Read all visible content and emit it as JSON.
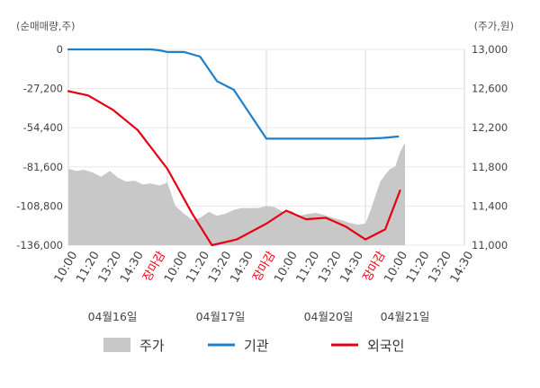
{
  "chart_data": {
    "type": "line",
    "left_axis": {
      "unit_label": "(순매매량,주)",
      "ticks": [
        "0",
        "-27,200",
        "-54,400",
        "-81,600",
        "-108,800",
        "-136,000"
      ],
      "range": [
        -136000,
        0
      ]
    },
    "right_axis": {
      "unit_label": "(주가,원)",
      "ticks": [
        "13,000",
        "12,600",
        "12,200",
        "11,800",
        "11,400",
        "11,000"
      ],
      "range": [
        11000,
        13000
      ]
    },
    "x_ticks": [
      "10:00",
      "11:20",
      "13:20",
      "14:30",
      "장마감",
      "10:00",
      "11:20",
      "13:20",
      "14:30",
      "장마감",
      "10:00",
      "11:20",
      "13:20",
      "14:30",
      "장마감",
      "10:00",
      "11:20",
      "13:20",
      "14:30"
    ],
    "x_tick_highlight": [
      false,
      false,
      false,
      false,
      true,
      false,
      false,
      false,
      false,
      true,
      false,
      false,
      false,
      false,
      true,
      false,
      false,
      false,
      false
    ],
    "date_labels": [
      "04월16일",
      "04월17일",
      "04월20일",
      "04월21일"
    ],
    "grid": true,
    "legend_position": "bottom",
    "series": [
      {
        "name": "주가",
        "type": "area",
        "axis": "right",
        "color": "#c8c8c8",
        "x": [
          0,
          0.08,
          0.16,
          0.25,
          0.33,
          0.42,
          0.5,
          0.58,
          0.67,
          0.75,
          0.83,
          0.92,
          1,
          1.08,
          1.17,
          1.25,
          1.33,
          1.42,
          1.5,
          1.58,
          1.67,
          1.75,
          1.83,
          1.92,
          2,
          2.08,
          2.17,
          2.25,
          2.33,
          2.42,
          2.5,
          2.58,
          2.67,
          2.75,
          2.83,
          2.92,
          3,
          3.05,
          3.1,
          3.15,
          3.2,
          3.25,
          3.3,
          3.35,
          3.4
        ],
        "values": [
          11780,
          11760,
          11770,
          11740,
          11700,
          11760,
          11690,
          11650,
          11660,
          11620,
          11630,
          11610,
          11640,
          11400,
          11320,
          11260,
          11280,
          11340,
          11300,
          11320,
          11360,
          11380,
          11380,
          11380,
          11400,
          11390,
          11340,
          11350,
          11300,
          11320,
          11330,
          11310,
          11280,
          11260,
          11230,
          11210,
          11220,
          11350,
          11500,
          11650,
          11720,
          11780,
          11800,
          11950,
          12050
        ]
      },
      {
        "name": "기관",
        "type": "line",
        "axis": "left",
        "color": "#1f7fc9",
        "x": [
          0,
          0.5,
          0.75,
          0.83,
          0.92,
          1.0,
          1.17,
          1.33,
          1.5,
          1.67,
          2.0,
          2.5,
          3.0,
          3.17,
          3.33
        ],
        "values": [
          0,
          0,
          0,
          0,
          -600,
          -1800,
          -1800,
          -5000,
          -22000,
          -28000,
          -62000,
          -62000,
          -62000,
          -61500,
          -60500
        ]
      },
      {
        "name": "외국인",
        "type": "line",
        "axis": "left",
        "color": "#e60012",
        "x": [
          0,
          0.2,
          0.45,
          0.7,
          1.0,
          1.25,
          1.45,
          1.7,
          2.0,
          2.2,
          2.4,
          2.6,
          2.8,
          3.0,
          3.2,
          3.35
        ],
        "values": [
          -29000,
          -32000,
          -42000,
          -56000,
          -83000,
          -114000,
          -136000,
          -132000,
          -121000,
          -112000,
          -118000,
          -117000,
          -123000,
          -132000,
          -125000,
          -98000
        ]
      }
    ]
  },
  "legend": [
    {
      "name": "주가",
      "color": "#c8c8c8",
      "kind": "box"
    },
    {
      "name": "기관",
      "color": "#1f7fc9",
      "kind": "line"
    },
    {
      "name": "외국인",
      "color": "#e60012",
      "kind": "line"
    }
  ]
}
